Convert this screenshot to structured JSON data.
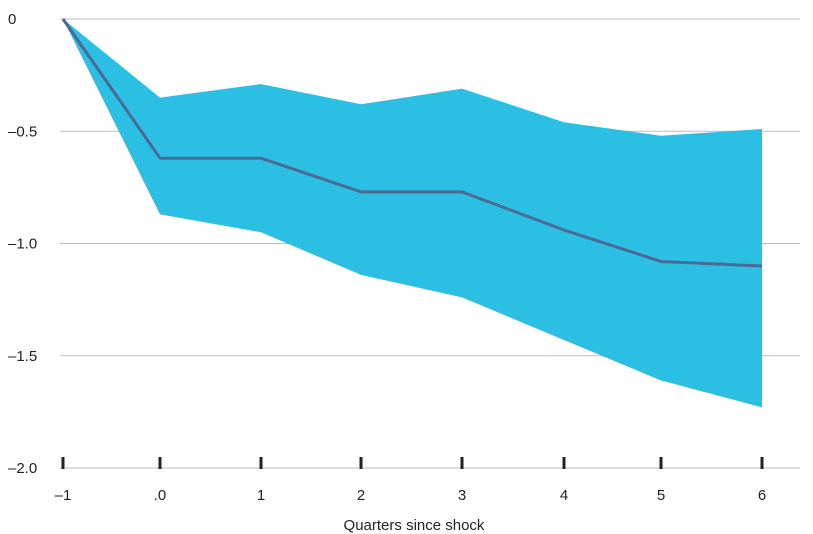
{
  "chart_data": {
    "type": "area",
    "x_categories": [
      "–1",
      ".0",
      "1",
      "2",
      "3",
      "4",
      "5",
      "6"
    ],
    "x": [
      -1,
      0,
      1,
      2,
      3,
      4,
      5,
      6
    ],
    "series": [
      {
        "kind": "band-upper",
        "values": [
          0,
          -0.35,
          -0.29,
          -0.38,
          -0.31,
          -0.46,
          -0.52,
          -0.49
        ]
      },
      {
        "kind": "band-lower",
        "values": [
          0,
          -0.87,
          -0.95,
          -1.14,
          -1.24,
          -1.43,
          -1.61,
          -1.73
        ]
      },
      {
        "kind": "line",
        "values": [
          0,
          -0.62,
          -0.62,
          -0.77,
          -0.77,
          -0.94,
          -1.08,
          -1.1
        ]
      }
    ],
    "y_ticks": [
      0,
      -0.5,
      -1.0,
      -1.5,
      -2.0
    ],
    "y_tick_labels": [
      "0",
      "–0.5",
      "–1.0",
      "–1.5",
      "–2.0"
    ],
    "ylim": [
      -2.0,
      0
    ],
    "xlabel": "Quarters since shock",
    "ylabel": "",
    "title": "",
    "grid": true,
    "colors": {
      "band": "#2bbfe3",
      "line": "#4a6a95",
      "grid": "#bdbdbd",
      "axis": "#222222"
    }
  }
}
